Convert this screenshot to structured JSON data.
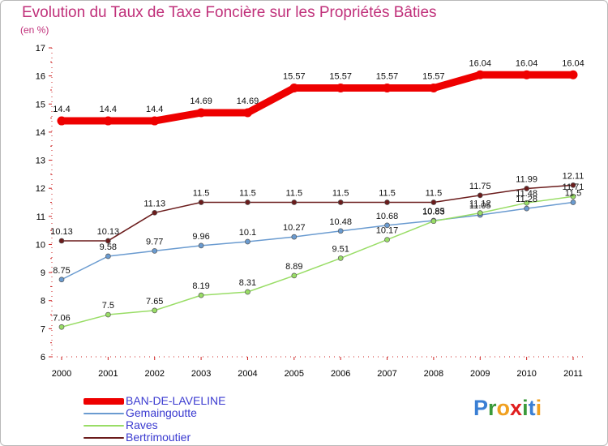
{
  "header": {
    "title": "Evolution du Taux de Taxe Foncière sur les Propriétés Bâties",
    "unit": "(en %)"
  },
  "logo": {
    "text": "Proxiti",
    "letters": [
      "P",
      "r",
      "o",
      "x",
      "i",
      "t",
      "i"
    ],
    "colors": [
      "#3a7fd4",
      "#3a9a3a",
      "#f0a020",
      "#e02020",
      "#3a9a3a",
      "#3a7fd4",
      "#f0a020"
    ]
  },
  "chart_data": {
    "type": "line",
    "title": "Evolution du Taux de Taxe Foncière sur les Propriétés Bâties",
    "ylabel": "(en %)",
    "xlabel": "",
    "ylim": [
      6,
      17
    ],
    "yticks": [
      6,
      7,
      8,
      9,
      10,
      11,
      12,
      13,
      14,
      15,
      16,
      17
    ],
    "grid": false,
    "legend": "bottom-left",
    "categories": [
      "2000",
      "2001",
      "2002",
      "2003",
      "2004",
      "2005",
      "2006",
      "2007",
      "2008",
      "2009",
      "2010",
      "2011"
    ],
    "series": [
      {
        "name": "BAN-DE-LAVELINE",
        "color": "#ee0000",
        "values": [
          14.4,
          14.4,
          14.4,
          14.69,
          14.69,
          15.57,
          15.57,
          15.57,
          15.57,
          16.04,
          16.04,
          16.04
        ],
        "labels": [
          "14.4",
          "14.4",
          "14.4",
          "14.69",
          "14.69",
          "15.57",
          "15.57",
          "15.57",
          "15.57",
          "16.04",
          "16.04",
          "16.04"
        ]
      },
      {
        "name": "Gemaingoutte",
        "color": "#6a9bd0",
        "values": [
          8.75,
          9.58,
          9.77,
          9.96,
          10.1,
          10.27,
          10.48,
          10.68,
          10.85,
          11.05,
          11.28,
          11.5
        ],
        "labels": [
          "8.75",
          "9.58",
          "9.77",
          "9.96",
          "10.1",
          "10.27",
          "10.48",
          "10.68",
          "10.85",
          "11.05",
          "11.28",
          "11.5"
        ]
      },
      {
        "name": "Raves",
        "color": "#99dd66",
        "values": [
          7.06,
          7.5,
          7.65,
          8.19,
          8.31,
          8.89,
          9.51,
          10.17,
          10.83,
          11.12,
          11.48,
          11.71
        ],
        "labels": [
          "7.06",
          "7.5",
          "7.65",
          "8.19",
          "8.31",
          "8.89",
          "9.51",
          "10.17",
          "10.83",
          "11.12",
          "11.48",
          "11.71"
        ]
      },
      {
        "name": "Bertrimoutier",
        "color": "#6b1c1c",
        "values": [
          10.13,
          10.13,
          11.13,
          11.5,
          11.5,
          11.5,
          11.5,
          11.5,
          11.5,
          11.75,
          11.99,
          12.11
        ],
        "labels": [
          "10.13",
          "10.13",
          "11.13",
          "11.5",
          "11.5",
          "11.5",
          "11.5",
          "11.5",
          "11.5",
          "11.75",
          "11.99",
          "12.11"
        ]
      }
    ]
  }
}
